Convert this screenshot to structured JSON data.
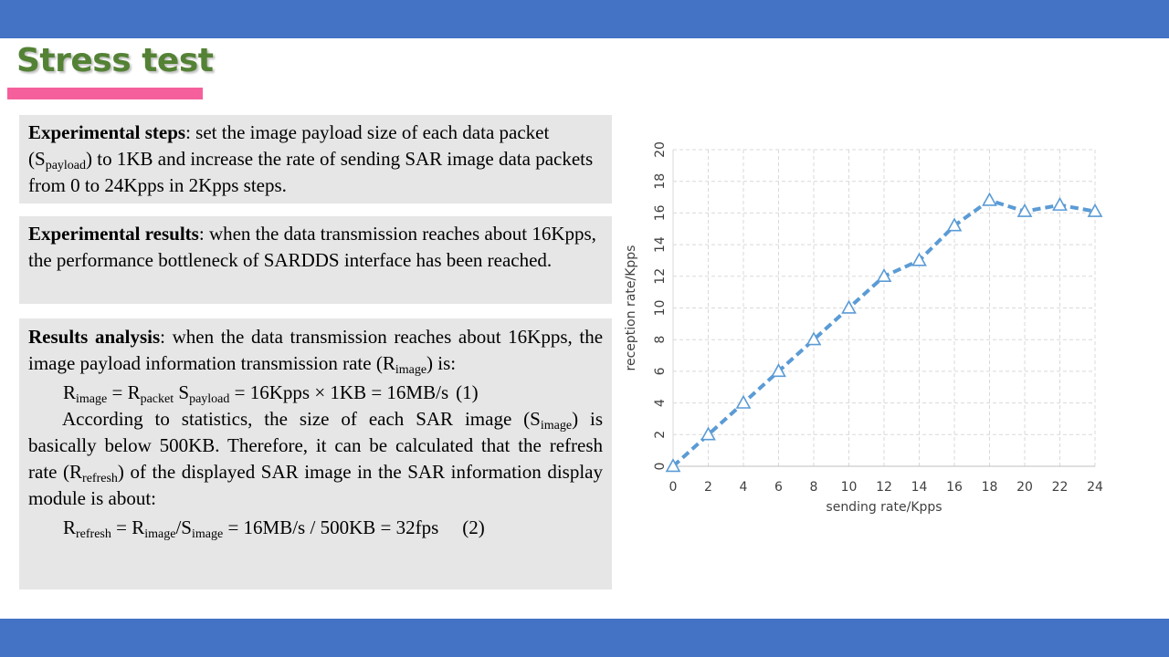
{
  "title": "Stress test",
  "colors": {
    "banner": "#4472c4",
    "title": "#548235",
    "underline": "#f5609c",
    "box": "#e7e6e6",
    "series": "#5b9bd5"
  },
  "steps": {
    "label": "Experimental steps",
    "t1": ": set the image payload size of each data packet (S",
    "t1_sub": "payload",
    "t2": ")  to 1KB and increase the rate of sending SAR image data packets from 0 to 24Kpps in 2Kpps steps."
  },
  "results": {
    "label": "Experimental results",
    "text": ": when the data transmission reaches about 16Kpps, the performance bottleneck of SARDDS  interface has been reached."
  },
  "analysis": {
    "label": "Results analysis",
    "p1a": ": when the data transmission reaches about 16Kpps, the image payload information transmission rate (R",
    "p1_sub": "image",
    "p1b": ") is:",
    "eq1": {
      "r": "R",
      "r_sub": "image",
      "eq": " = R",
      "packet_sub": "packet",
      "s": " S",
      "payload_sub": "payload",
      "rest": " = 16Kpps × 1KB = 16MB/s",
      "num": "(1)"
    },
    "p2a": "According to statistics, the size of each SAR image (S",
    "p2_sub": "image",
    "p2b": ") is basically below 500KB. Therefore, it can be calculated that the refresh rate (R",
    "p2_sub2": "refresh",
    "p2c": ") of the displayed SAR image in the SAR information display module is about:",
    "eq2": {
      "r": "R",
      "r_sub": "refresh",
      "eq": " = R",
      "image_sub": "image",
      "slash": "/S",
      "simage_sub": "image",
      "rest": " = 16MB/s / 500KB = 32fps",
      "num": "(2)"
    }
  },
  "chart_data": {
    "type": "line",
    "xlabel": "sending rate/Kpps",
    "ylabel": "reception rate/Kpps",
    "x": [
      0,
      2,
      4,
      6,
      8,
      10,
      12,
      14,
      16,
      18,
      20,
      22,
      24
    ],
    "series": [
      {
        "values": [
          0,
          2,
          4,
          6,
          8,
          10,
          12,
          13,
          15.2,
          16.8,
          16.1,
          16.5,
          16.1
        ]
      }
    ],
    "xlim": [
      0,
      24
    ],
    "ylim": [
      0,
      20
    ],
    "xticks": [
      "0",
      "2",
      "4",
      "6",
      "8",
      "10",
      "12",
      "14",
      "16",
      "18",
      "20",
      "22",
      "24"
    ],
    "yticks": [
      "0",
      "2",
      "4",
      "6",
      "8",
      "10",
      "12",
      "14",
      "16",
      "18",
      "20"
    ],
    "grid": true,
    "line_style": "dashed",
    "marker": "open-triangle"
  }
}
